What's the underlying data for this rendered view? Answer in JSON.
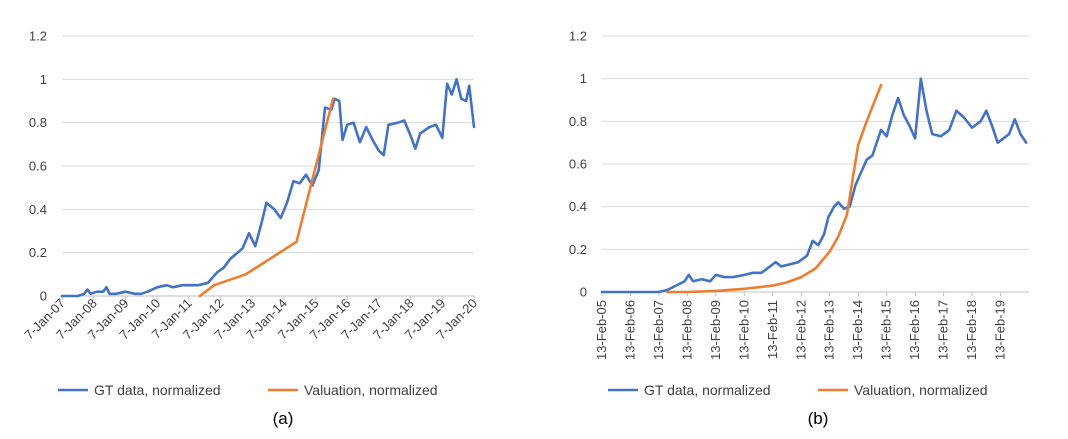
{
  "colors": {
    "gt": "#4472C4",
    "valuation": "#ED7D31",
    "grid": "#D9D9D9",
    "axis": "#BFBFBF",
    "text": "#404040"
  },
  "chart_data": [
    {
      "type": "line",
      "caption": "(a)",
      "ylim": [
        0,
        1.2
      ],
      "yticks": [
        "0",
        "0.2",
        "0.4",
        "0.6",
        "0.8",
        "1",
        "1.2"
      ],
      "xlim": [
        2007.0,
        2020.0
      ],
      "xtick_labels": [
        "7-Jan-07",
        "7-Jan-08",
        "7-Jan-09",
        "7-Jan-10",
        "7-Jan-11",
        "7-Jan-12",
        "7-Jan-13",
        "7-Jan-14",
        "7-Jan-15",
        "7-Jan-16",
        "7-Jan-17",
        "7-Jan-18",
        "7-Jan-19",
        "7-Jan-20"
      ],
      "xlabel": "",
      "ylabel": "",
      "grid": true,
      "legend": "bottom",
      "series": [
        {
          "name": "GT data, normalized",
          "color": "#4472C4",
          "x": [
            2007.0,
            2007.5,
            2007.7,
            2007.8,
            2007.9,
            2008.1,
            2008.3,
            2008.4,
            2008.5,
            2008.7,
            2009.0,
            2009.3,
            2009.5,
            2009.7,
            2010.0,
            2010.3,
            2010.5,
            2010.8,
            2011.0,
            2011.3,
            2011.6,
            2011.9,
            2012.1,
            2012.3,
            2012.7,
            2012.9,
            2013.1,
            2013.3,
            2013.45,
            2013.7,
            2013.9,
            2014.1,
            2014.3,
            2014.5,
            2014.7,
            2014.9,
            2015.1,
            2015.3,
            2015.5,
            2015.6,
            2015.75,
            2015.85,
            2016.0,
            2016.2,
            2016.4,
            2016.6,
            2016.8,
            2017.0,
            2017.15,
            2017.3,
            2017.6,
            2017.8,
            2018.0,
            2018.15,
            2018.3,
            2018.6,
            2018.8,
            2019.0,
            2019.15,
            2019.3,
            2019.45,
            2019.6,
            2019.75,
            2019.85,
            2020.0
          ],
          "y": [
            0,
            0,
            0.01,
            0.03,
            0.01,
            0.02,
            0.02,
            0.04,
            0.01,
            0.01,
            0.02,
            0.01,
            0.01,
            0.02,
            0.04,
            0.05,
            0.04,
            0.05,
            0.05,
            0.05,
            0.06,
            0.11,
            0.13,
            0.17,
            0.22,
            0.29,
            0.23,
            0.34,
            0.43,
            0.4,
            0.36,
            0.43,
            0.53,
            0.52,
            0.56,
            0.51,
            0.58,
            0.87,
            0.86,
            0.91,
            0.9,
            0.72,
            0.79,
            0.8,
            0.71,
            0.78,
            0.72,
            0.67,
            0.65,
            0.79,
            0.8,
            0.81,
            0.74,
            0.68,
            0.75,
            0.78,
            0.79,
            0.73,
            0.98,
            0.93,
            1.0,
            0.91,
            0.9,
            0.97,
            0.78
          ]
        },
        {
          "name": "Valuation, normalized",
          "color": "#ED7D31",
          "x": [
            2011.35,
            2011.8,
            2012.8,
            2014.4,
            2015.55
          ],
          "y": [
            0.0,
            0.05,
            0.1,
            0.25,
            0.91
          ]
        }
      ]
    },
    {
      "type": "line",
      "caption": "(b)",
      "ylim": [
        0,
        1.2
      ],
      "yticks": [
        "0",
        "0.2",
        "0.4",
        "0.6",
        "0.8",
        "1",
        "1.2"
      ],
      "xlim": [
        2005.0,
        2020.0
      ],
      "xtick_labels": [
        "13-Feb-05",
        "13-Feb-06",
        "13-Feb-07",
        "13-Feb-08",
        "13-Feb-09",
        "13-Feb-10",
        "13-Feb-11",
        "13-Feb-12",
        "13-Feb-13",
        "13-Feb-14",
        "13-Feb-15",
        "13-Feb-16",
        "13-Feb-17",
        "13-Feb-18",
        "13-Feb-19"
      ],
      "xlabel": "",
      "ylabel": "",
      "grid": true,
      "legend": "bottom",
      "series": [
        {
          "name": "GT data, normalized",
          "color": "#4472C4",
          "x": [
            2005.0,
            2006.0,
            2007.0,
            2007.3,
            2007.6,
            2007.9,
            2008.05,
            2008.2,
            2008.5,
            2008.8,
            2009.0,
            2009.3,
            2009.6,
            2010.0,
            2010.3,
            2010.6,
            2010.9,
            2011.1,
            2011.3,
            2011.6,
            2011.9,
            2012.2,
            2012.4,
            2012.6,
            2012.8,
            2012.95,
            2013.15,
            2013.3,
            2013.5,
            2013.7,
            2013.9,
            2014.1,
            2014.3,
            2014.5,
            2014.8,
            2015.0,
            2015.2,
            2015.4,
            2015.6,
            2015.8,
            2016.0,
            2016.2,
            2016.4,
            2016.6,
            2016.9,
            2017.2,
            2017.45,
            2017.7,
            2018.0,
            2018.3,
            2018.5,
            2018.7,
            2018.9,
            2019.1,
            2019.3,
            2019.5,
            2019.7,
            2019.9
          ],
          "y": [
            0,
            0,
            0,
            0.01,
            0.03,
            0.05,
            0.08,
            0.05,
            0.06,
            0.05,
            0.08,
            0.07,
            0.07,
            0.08,
            0.09,
            0.09,
            0.12,
            0.14,
            0.12,
            0.13,
            0.14,
            0.17,
            0.24,
            0.22,
            0.27,
            0.35,
            0.4,
            0.42,
            0.39,
            0.4,
            0.5,
            0.56,
            0.62,
            0.64,
            0.76,
            0.73,
            0.83,
            0.91,
            0.83,
            0.78,
            0.72,
            1.0,
            0.85,
            0.74,
            0.73,
            0.76,
            0.85,
            0.82,
            0.77,
            0.8,
            0.85,
            0.78,
            0.7,
            0.72,
            0.74,
            0.81,
            0.74,
            0.7
          ]
        },
        {
          "name": "Valuation, normalized",
          "color": "#ED7D31",
          "x": [
            2007.3,
            2008.0,
            2009.0,
            2010.0,
            2011.0,
            2011.5,
            2012.0,
            2012.5,
            2013.0,
            2013.3,
            2013.6,
            2014.0,
            2014.3,
            2014.8
          ],
          "y": [
            0.0,
            0.0,
            0.005,
            0.015,
            0.03,
            0.045,
            0.07,
            0.11,
            0.19,
            0.26,
            0.36,
            0.69,
            0.8,
            0.97
          ]
        }
      ]
    }
  ]
}
